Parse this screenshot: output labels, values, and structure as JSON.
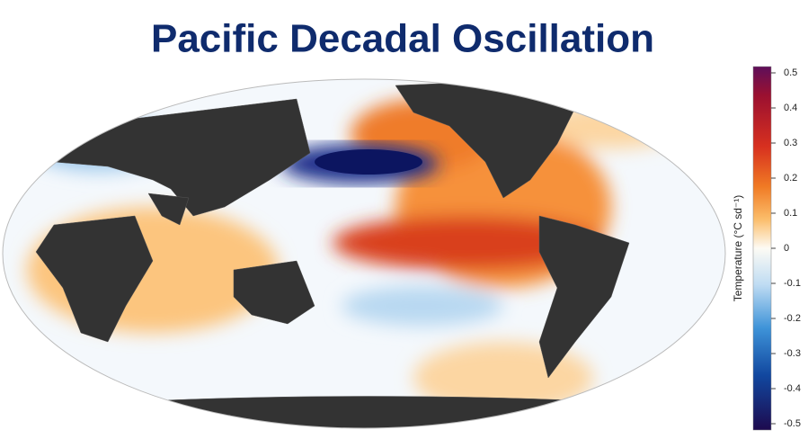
{
  "title": "Pacific Decadal Oscillation",
  "colorbar": {
    "label": "Temperature (°C sd⁻¹)",
    "lim": [
      -0.5,
      0.5
    ],
    "ticks": [
      0.5,
      0.4,
      0.3,
      0.2,
      0.1,
      0,
      -0.1,
      -0.2,
      -0.3,
      -0.4,
      -0.5
    ]
  }
}
